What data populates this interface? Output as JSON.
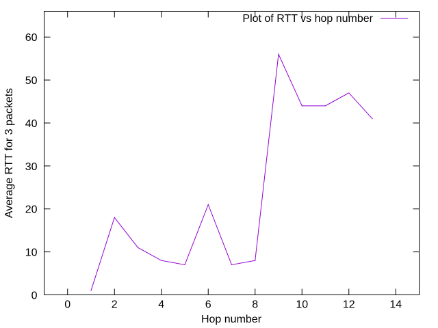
{
  "chart_data": {
    "type": "line",
    "title": "",
    "xlabel": "Hop number",
    "ylabel": "Average RTT for 3 packets",
    "xlim": [
      -1,
      15
    ],
    "ylim": [
      0,
      66
    ],
    "xticks": [
      0,
      2,
      4,
      6,
      8,
      10,
      12,
      14
    ],
    "yticks": [
      0,
      10,
      20,
      30,
      40,
      50,
      60
    ],
    "grid": false,
    "legend_position": "top-right",
    "series": [
      {
        "name": "Plot of RTT vs hop number",
        "color": "#9400d3",
        "x": [
          1,
          2,
          3,
          4,
          5,
          6,
          7,
          8,
          9,
          10,
          11,
          12,
          13
        ],
        "y": [
          1,
          18,
          11,
          8,
          7,
          21,
          7,
          8,
          56,
          44,
          44,
          47,
          41
        ]
      }
    ]
  }
}
